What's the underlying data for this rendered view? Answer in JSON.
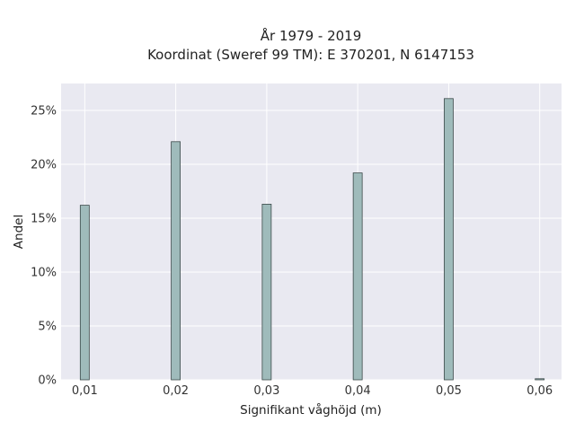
{
  "chart_data": {
    "type": "bar",
    "title": "År 1979 - 2019",
    "subtitle": "Koordinat (Sweref 99 TM): E 370201, N 6147153",
    "xlabel": "Signifikant våghöjd (m)",
    "ylabel": "Andel",
    "x": [
      0.01,
      0.02,
      0.03,
      0.04,
      0.05,
      0.06
    ],
    "values": [
      16.2,
      22.1,
      16.3,
      19.2,
      26.1,
      0.1
    ],
    "xticks": [
      0.01,
      0.02,
      0.03,
      0.04,
      0.05,
      0.06
    ],
    "xtick_labels": [
      "0,01",
      "0,02",
      "0,03",
      "0,04",
      "0,05",
      "0,06"
    ],
    "yticks": [
      0,
      5,
      10,
      15,
      20,
      25
    ],
    "ytick_labels": [
      "0%",
      "5%",
      "10%",
      "15%",
      "20%",
      "25%"
    ],
    "xlim": [
      0.0074,
      0.0624
    ],
    "ylim": [
      0,
      27.5
    ],
    "grid": true,
    "colors": {
      "bar_fill": "#9fbbbb",
      "bar_edge": "#3c4a4a",
      "plot_background": "#e9e9f1",
      "grid": "#ffffff"
    }
  }
}
